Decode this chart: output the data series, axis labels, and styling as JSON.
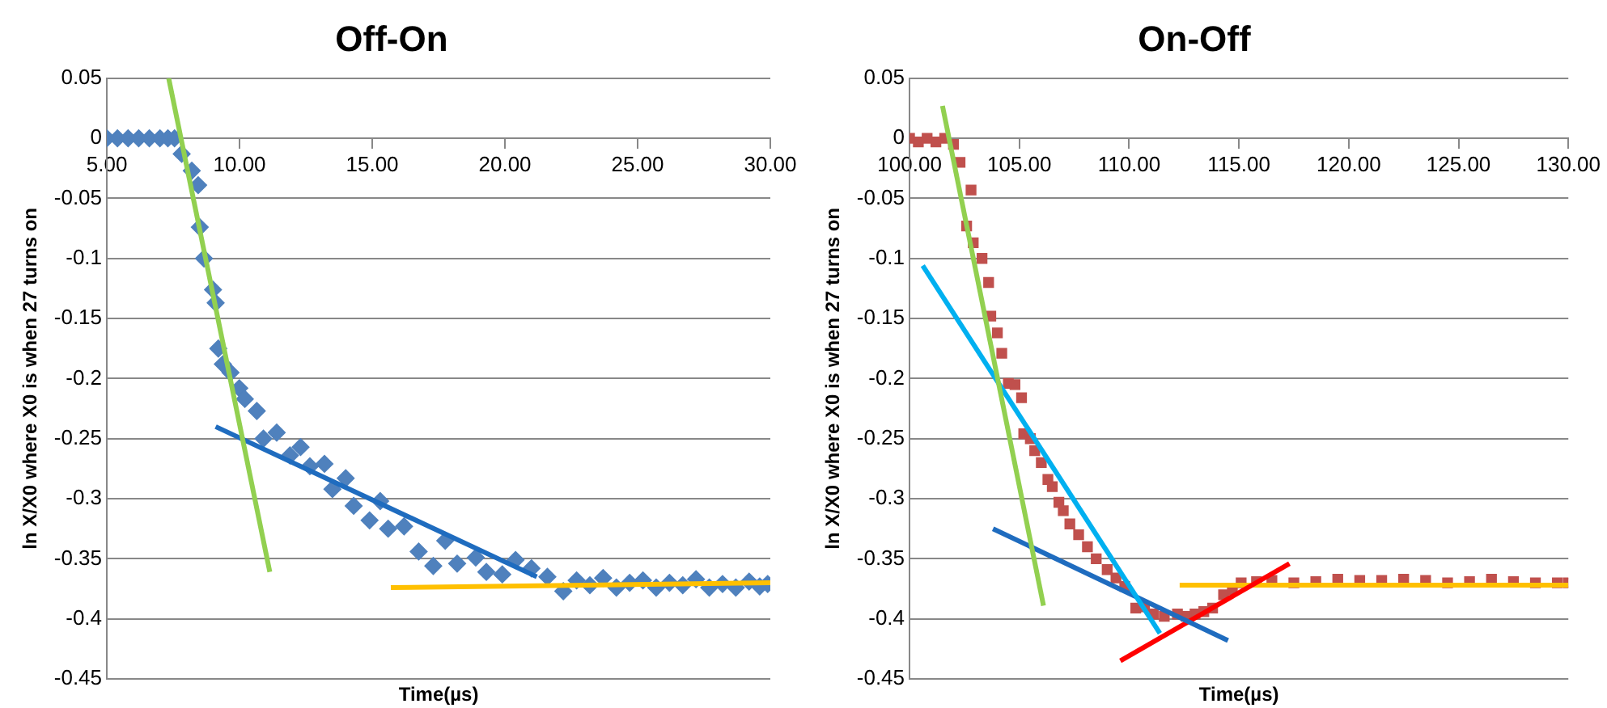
{
  "chart_data": [
    {
      "type": "scatter",
      "title": "Off-On",
      "xlabel": "Time(µs)",
      "ylabel": "ln X/X0 where X0 is when 27 turns on",
      "xlim": [
        5,
        30
      ],
      "xticks": [
        {
          "value": 5,
          "label": "5.00"
        },
        {
          "value": 10,
          "label": "10.00"
        },
        {
          "value": 15,
          "label": "15.00"
        },
        {
          "value": 20,
          "label": "20.00"
        },
        {
          "value": 25,
          "label": "25.00"
        },
        {
          "value": 30,
          "label": "30.00"
        }
      ],
      "ylim": [
        -0.45,
        0.05
      ],
      "yticks": [
        0.05,
        0,
        -0.05,
        -0.1,
        -0.15,
        -0.2,
        -0.25,
        -0.3,
        -0.35,
        -0.4,
        -0.45
      ],
      "grid": "y",
      "series": [
        {
          "marker": "diamond",
          "color": "#4f81bd",
          "x": [
            5,
            5.4,
            5.8,
            6.2,
            6.6,
            7.0,
            7.3,
            7.55,
            7.82,
            8.2,
            8.44,
            8.5,
            8.66,
            9.0,
            9.1,
            9.2,
            9.37,
            9.66,
            9.99,
            10.2,
            10.65,
            10.9,
            11.4,
            11.9,
            12.3,
            12.65,
            13.2,
            13.5,
            14.0,
            14.3,
            14.9,
            15.3,
            15.6,
            16.2,
            16.75,
            17.3,
            17.75,
            18.2,
            18.9,
            19.3,
            19.9,
            20.4,
            21.0,
            21.6,
            22.2,
            22.7,
            23.2,
            23.7,
            24.2,
            24.7,
            25.2,
            25.7,
            26.2,
            26.7,
            27.2,
            27.7,
            28.2,
            28.7,
            29.2,
            29.6,
            29.9
          ],
          "values": [
            0,
            0,
            0,
            0,
            0,
            0,
            0,
            0,
            -0.013,
            -0.027,
            -0.039,
            -0.074,
            -0.1,
            -0.126,
            -0.137,
            -0.175,
            -0.188,
            -0.195,
            -0.208,
            -0.217,
            -0.227,
            -0.25,
            -0.245,
            -0.264,
            -0.257,
            -0.273,
            -0.271,
            -0.292,
            -0.283,
            -0.306,
            -0.318,
            -0.302,
            -0.325,
            -0.323,
            -0.344,
            -0.356,
            -0.335,
            -0.354,
            -0.349,
            -0.361,
            -0.363,
            -0.351,
            -0.358,
            -0.365,
            -0.377,
            -0.368,
            -0.372,
            -0.366,
            -0.374,
            -0.37,
            -0.368,
            -0.374,
            -0.37,
            -0.372,
            -0.367,
            -0.374,
            -0.371,
            -0.374,
            -0.369,
            -0.373,
            -0.371
          ]
        },
        {
          "type": "line",
          "marker": "none",
          "color": "#92d050",
          "x": [
            7.33,
            11.14
          ],
          "values": [
            0.05,
            -0.361
          ]
        },
        {
          "type": "line",
          "marker": "none",
          "color": "#1f6cbf",
          "x": [
            9.1,
            21.2
          ],
          "values": [
            -0.24,
            -0.365
          ]
        },
        {
          "type": "line",
          "marker": "none",
          "color": "#ffc000",
          "x": [
            15.7,
            30
          ],
          "values": [
            -0.374,
            -0.37
          ]
        }
      ]
    },
    {
      "type": "scatter",
      "title": "On-Off",
      "xlabel": "Time(µs)",
      "ylabel": "ln X/X0 where X0 is when 27 turns on",
      "xlim": [
        100,
        130
      ],
      "xticks": [
        {
          "value": 100,
          "label": "100.00"
        },
        {
          "value": 105,
          "label": "105.00"
        },
        {
          "value": 110,
          "label": "110.00"
        },
        {
          "value": 115,
          "label": "115.00"
        },
        {
          "value": 120,
          "label": "120.00"
        },
        {
          "value": 125,
          "label": "125.00"
        },
        {
          "value": 130,
          "label": "130.00"
        }
      ],
      "ylim": [
        -0.45,
        0.05
      ],
      "yticks": [
        0.05,
        0,
        -0.05,
        -0.1,
        -0.15,
        -0.2,
        -0.25,
        -0.3,
        -0.35,
        -0.4,
        -0.45
      ],
      "grid": "y",
      "series": [
        {
          "marker": "square",
          "color": "#c0504d",
          "x": [
            100,
            100.4,
            100.8,
            101.2,
            101.6,
            102.0,
            102.3,
            102.6,
            102.8,
            102.9,
            103.3,
            103.6,
            103.7,
            104.0,
            104.2,
            104.5,
            104.8,
            105.1,
            105.2,
            105.5,
            105.7,
            106.0,
            106.3,
            106.5,
            106.8,
            107.0,
            107.3,
            107.7,
            108.1,
            108.5,
            109.0,
            109.4,
            109.8,
            110.3,
            110.7,
            111.1,
            111.6,
            112.2,
            112.6,
            113.0,
            113.4,
            113.8,
            114.3,
            114.7,
            115.1,
            115.8,
            116.5,
            117.5,
            118.5,
            119.5,
            120.5,
            121.5,
            122.5,
            123.5,
            124.5,
            125.5,
            126.5,
            127.5,
            128.5,
            129.5,
            130
          ],
          "values": [
            0,
            -0.003,
            0,
            -0.003,
            0,
            -0.005,
            -0.02,
            -0.073,
            -0.043,
            -0.087,
            -0.1,
            -0.12,
            -0.148,
            -0.162,
            -0.179,
            -0.204,
            -0.205,
            -0.216,
            -0.246,
            -0.25,
            -0.26,
            -0.27,
            -0.284,
            -0.29,
            -0.303,
            -0.31,
            -0.321,
            -0.33,
            -0.34,
            -0.35,
            -0.359,
            -0.366,
            -0.373,
            -0.391,
            -0.39,
            -0.396,
            -0.398,
            -0.396,
            -0.398,
            -0.396,
            -0.394,
            -0.391,
            -0.38,
            -0.376,
            -0.37,
            -0.369,
            -0.368,
            -0.37,
            -0.369,
            -0.367,
            -0.368,
            -0.368,
            -0.367,
            -0.368,
            -0.37,
            -0.369,
            -0.367,
            -0.369,
            -0.37,
            -0.37,
            -0.37
          ]
        },
        {
          "type": "line",
          "marker": "none",
          "color": "#92d050",
          "x": [
            101.5,
            106.1
          ],
          "values": [
            0.027,
            -0.389
          ]
        },
        {
          "type": "line",
          "marker": "none",
          "color": "#00b0f0",
          "x": [
            100.6,
            111.4
          ],
          "values": [
            -0.106,
            -0.412
          ]
        },
        {
          "type": "line",
          "marker": "none",
          "color": "#1f6cbf",
          "x": [
            103.8,
            114.5
          ],
          "values": [
            -0.325,
            -0.418
          ]
        },
        {
          "type": "line",
          "marker": "none",
          "color": "#ff0000",
          "x": [
            109.6,
            117.3
          ],
          "values": [
            -0.435,
            -0.354
          ]
        },
        {
          "type": "line",
          "marker": "none",
          "color": "#ffc000",
          "x": [
            112.3,
            130
          ],
          "values": [
            -0.372,
            -0.372
          ]
        }
      ]
    }
  ]
}
